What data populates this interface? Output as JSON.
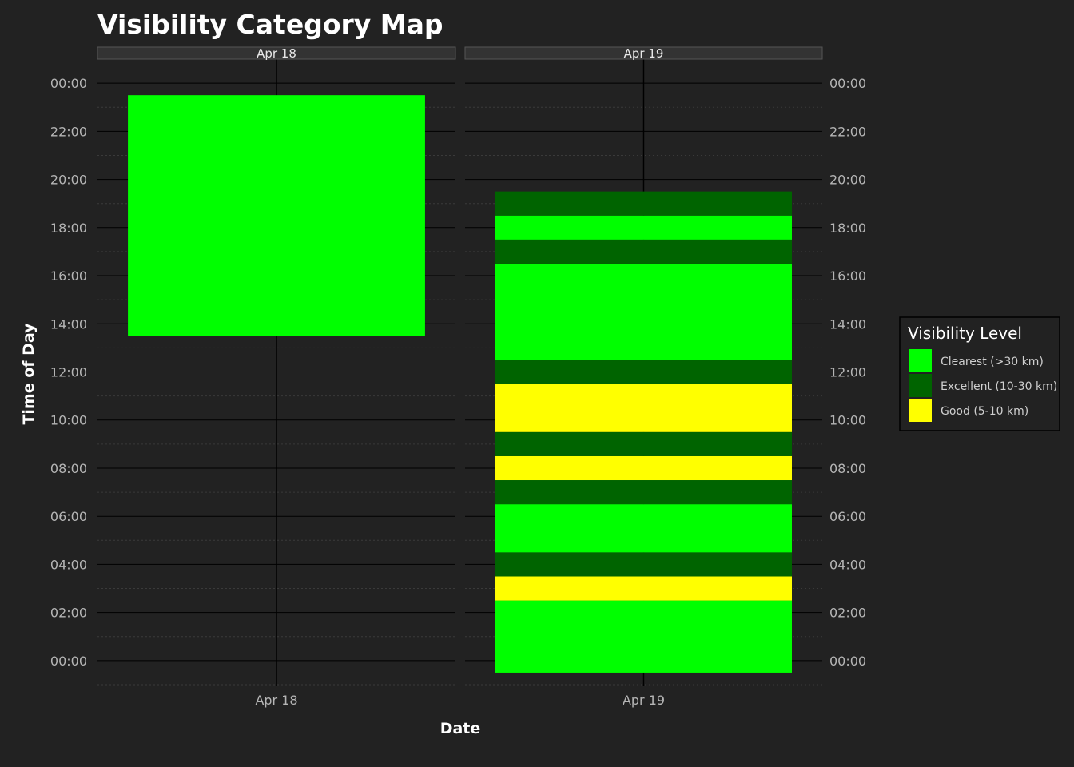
{
  "chart_data": {
    "type": "heatmap",
    "title": "Visibility Category Map",
    "xlabel": "Date",
    "ylabel": "Time of Day",
    "facets": [
      "Apr 18",
      "Apr 19"
    ],
    "y_ticks": [
      "00:00",
      "02:00",
      "04:00",
      "06:00",
      "08:00",
      "10:00",
      "12:00",
      "14:00",
      "16:00",
      "18:00",
      "20:00",
      "22:00",
      "00:00"
    ],
    "ylim_hours": [
      -1,
      25
    ],
    "grid": true,
    "legend": {
      "title": "Visibility Level",
      "position": "right",
      "categories": [
        {
          "name": "Clearest (>30 km)",
          "color": "#00FF00"
        },
        {
          "name": "Excellent (10-30 km)",
          "color": "#006400"
        },
        {
          "name": "Good (5-10 km)",
          "color": "#FFFF00"
        }
      ]
    },
    "blocks": [
      {
        "date": "Apr 18",
        "start_hour": 13.5,
        "end_hour": 23.5,
        "category": "Clearest (>30 km)"
      },
      {
        "date": "Apr 19",
        "start_hour": -0.5,
        "end_hour": 2.5,
        "category": "Clearest (>30 km)"
      },
      {
        "date": "Apr 19",
        "start_hour": 2.5,
        "end_hour": 3.5,
        "category": "Good (5-10 km)"
      },
      {
        "date": "Apr 19",
        "start_hour": 3.5,
        "end_hour": 4.5,
        "category": "Excellent (10-30 km)"
      },
      {
        "date": "Apr 19",
        "start_hour": 4.5,
        "end_hour": 6.5,
        "category": "Clearest (>30 km)"
      },
      {
        "date": "Apr 19",
        "start_hour": 6.5,
        "end_hour": 7.5,
        "category": "Excellent (10-30 km)"
      },
      {
        "date": "Apr 19",
        "start_hour": 7.5,
        "end_hour": 8.5,
        "category": "Good (5-10 km)"
      },
      {
        "date": "Apr 19",
        "start_hour": 8.5,
        "end_hour": 9.5,
        "category": "Excellent (10-30 km)"
      },
      {
        "date": "Apr 19",
        "start_hour": 9.5,
        "end_hour": 11.5,
        "category": "Good (5-10 km)"
      },
      {
        "date": "Apr 19",
        "start_hour": 11.5,
        "end_hour": 12.5,
        "category": "Excellent (10-30 km)"
      },
      {
        "date": "Apr 19",
        "start_hour": 12.5,
        "end_hour": 16.5,
        "category": "Clearest (>30 km)"
      },
      {
        "date": "Apr 19",
        "start_hour": 16.5,
        "end_hour": 17.5,
        "category": "Excellent (10-30 km)"
      },
      {
        "date": "Apr 19",
        "start_hour": 17.5,
        "end_hour": 18.5,
        "category": "Clearest (>30 km)"
      },
      {
        "date": "Apr 19",
        "start_hour": 18.5,
        "end_hour": 19.5,
        "category": "Excellent (10-30 km)"
      }
    ]
  }
}
